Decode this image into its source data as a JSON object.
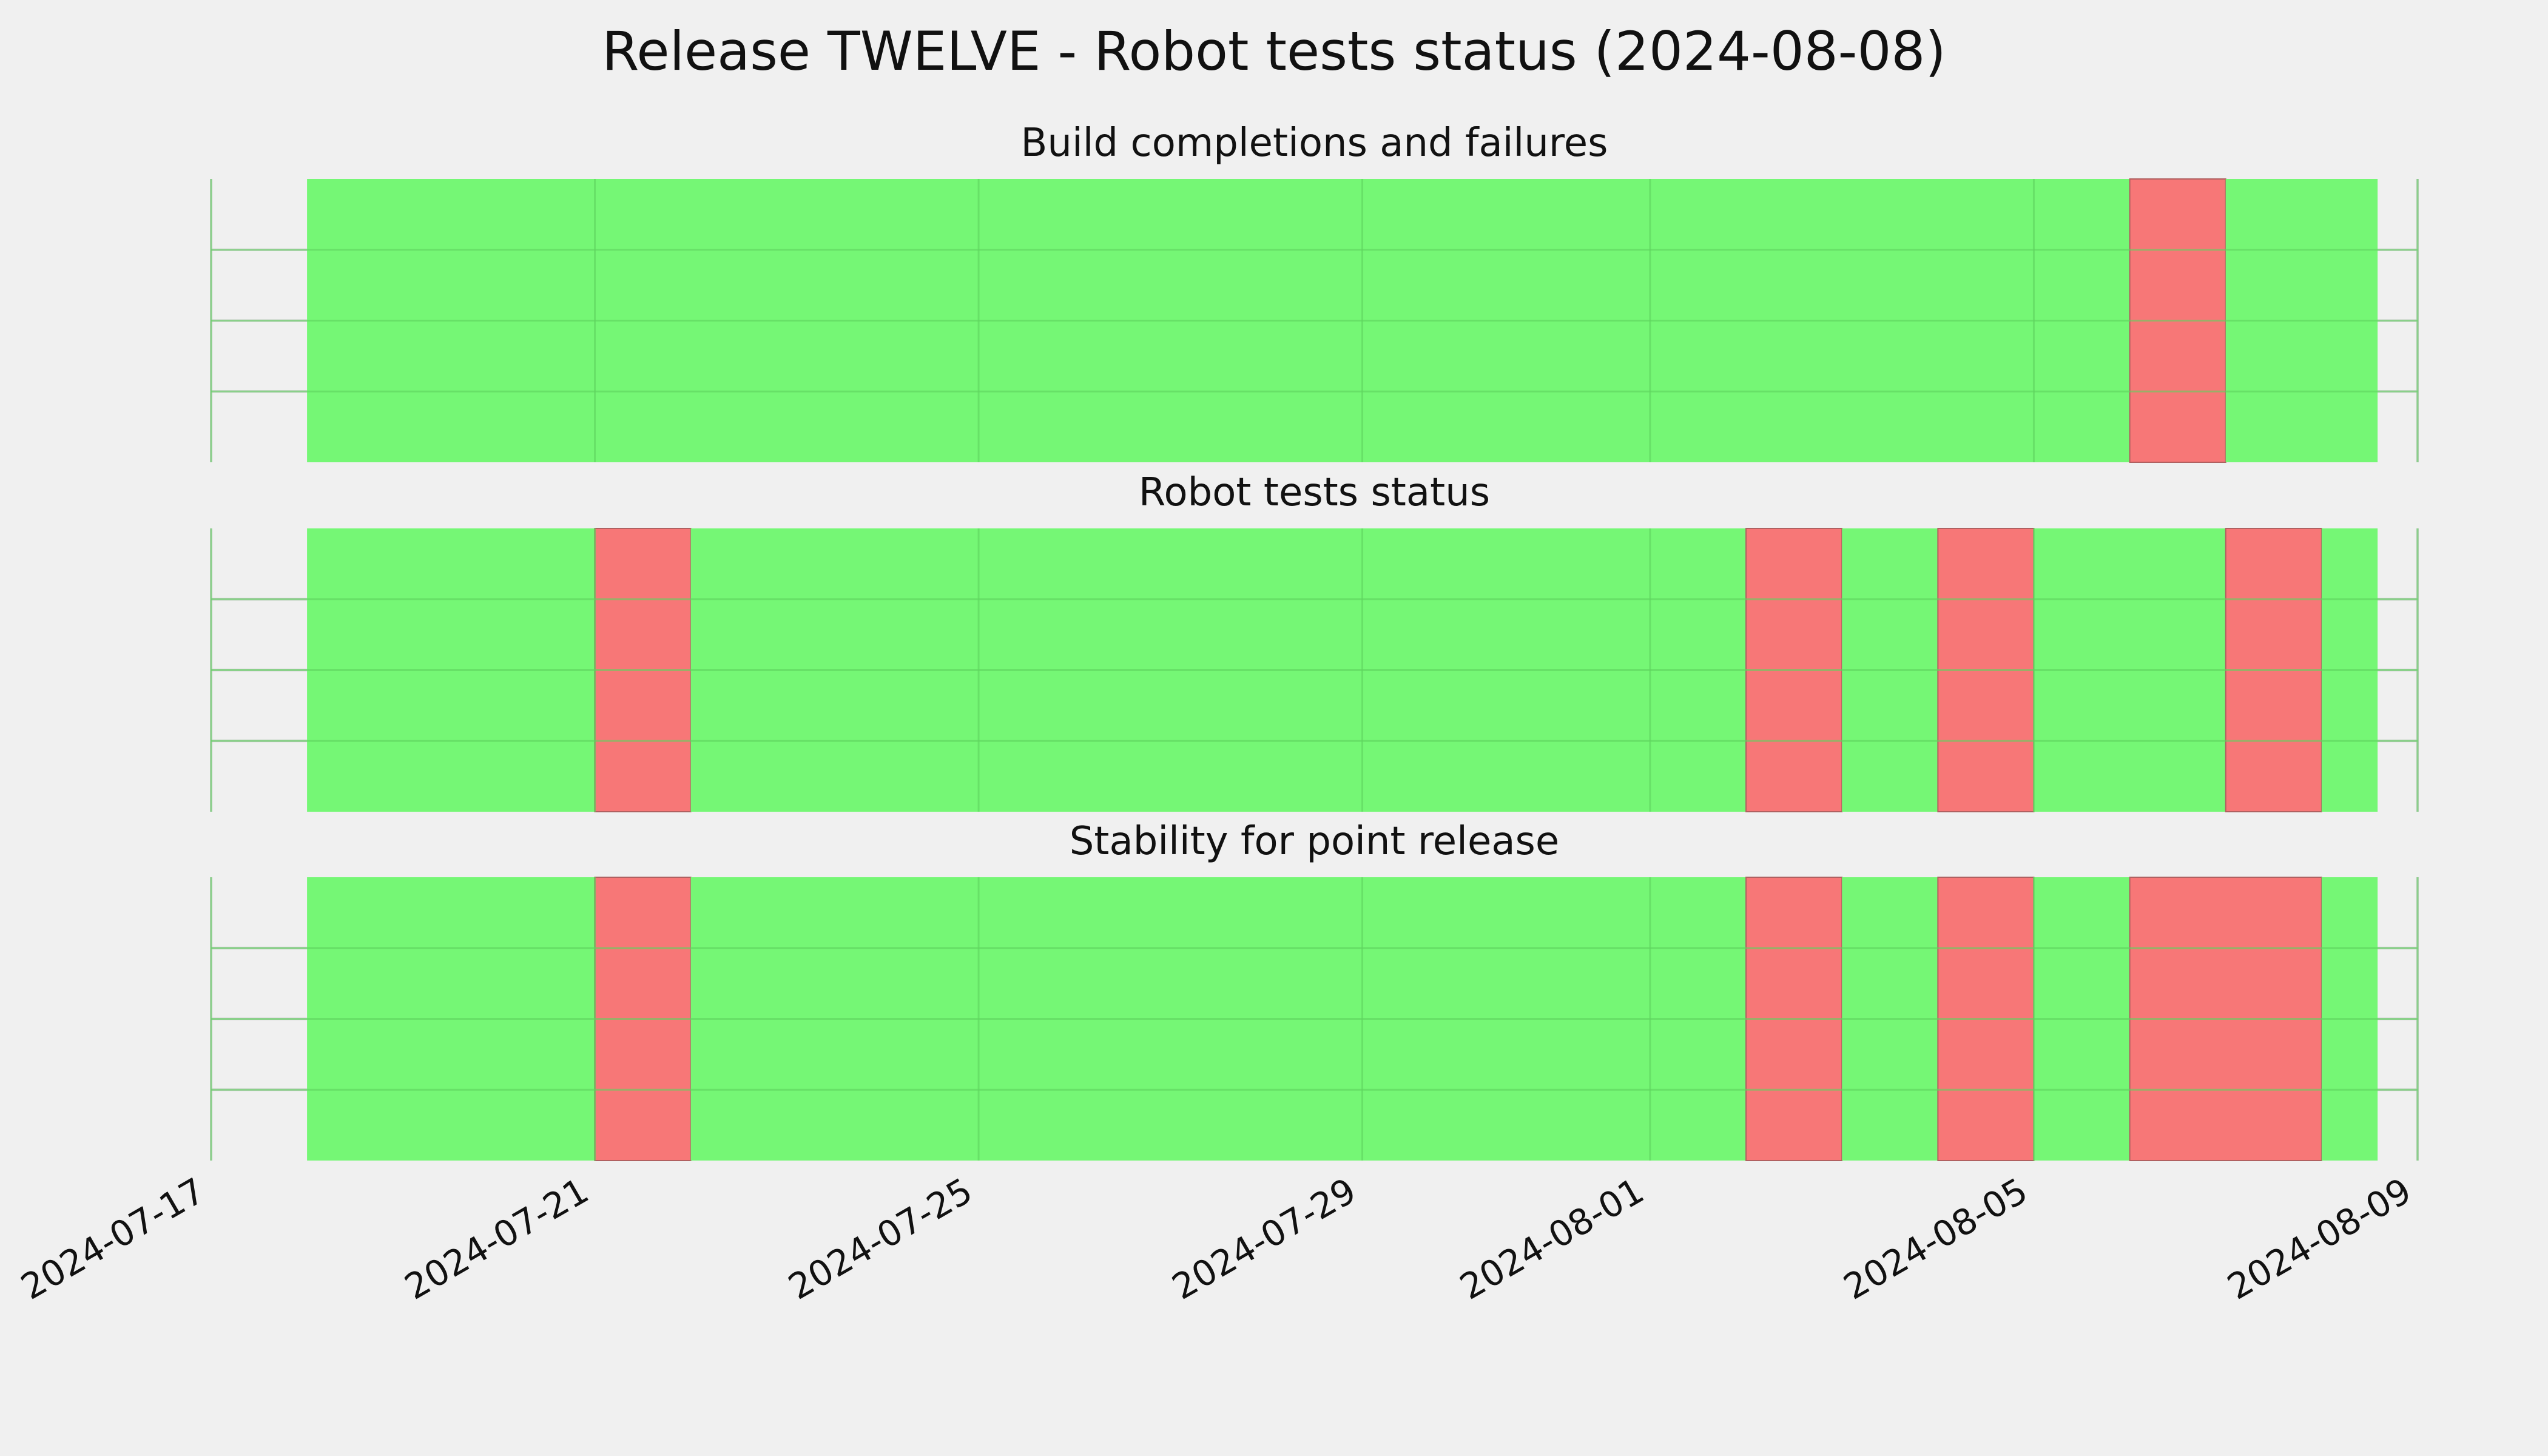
{
  "colors": {
    "background": "#f0f0f0",
    "pass": "#75f775",
    "fail": "#f77777",
    "grid": "#cbcbcb",
    "grid_on_bars": "#5fd45f"
  },
  "chart_data": {
    "type": "timeline",
    "title": "Release TWELVE - Robot tests status (2024-08-08)",
    "x_axis": {
      "type": "date",
      "range": [
        "2024-07-17",
        "2024-08-09"
      ],
      "ticks": [
        "2024-07-17",
        "2024-07-21",
        "2024-07-25",
        "2024-07-29",
        "2024-08-01",
        "2024-08-05",
        "2024-08-09"
      ]
    },
    "grid": true,
    "panels": [
      {
        "title": "Build completions and failures",
        "segments": [
          {
            "start": "2024-07-18",
            "end": "2024-08-06",
            "status": "pass"
          },
          {
            "start": "2024-08-06",
            "end": "2024-08-07",
            "status": "fail"
          },
          {
            "start": "2024-08-07",
            "end": "2024-08-08 14:00",
            "status": "pass"
          }
        ]
      },
      {
        "title": "Robot tests status",
        "segments": [
          {
            "start": "2024-07-18",
            "end": "2024-07-21",
            "status": "pass"
          },
          {
            "start": "2024-07-21",
            "end": "2024-07-22",
            "status": "fail"
          },
          {
            "start": "2024-07-22",
            "end": "2024-08-02",
            "status": "pass"
          },
          {
            "start": "2024-08-02",
            "end": "2024-08-03",
            "status": "fail"
          },
          {
            "start": "2024-08-03",
            "end": "2024-08-04",
            "status": "pass"
          },
          {
            "start": "2024-08-04",
            "end": "2024-08-05",
            "status": "fail"
          },
          {
            "start": "2024-08-05",
            "end": "2024-08-07",
            "status": "pass"
          },
          {
            "start": "2024-08-07",
            "end": "2024-08-08",
            "status": "fail"
          },
          {
            "start": "2024-08-08",
            "end": "2024-08-08 14:00",
            "status": "pass"
          }
        ]
      },
      {
        "title": "Stability for point release",
        "segments": [
          {
            "start": "2024-07-18",
            "end": "2024-07-21",
            "status": "pass"
          },
          {
            "start": "2024-07-21",
            "end": "2024-07-22",
            "status": "fail"
          },
          {
            "start": "2024-07-22",
            "end": "2024-08-02",
            "status": "pass"
          },
          {
            "start": "2024-08-02",
            "end": "2024-08-03",
            "status": "fail"
          },
          {
            "start": "2024-08-03",
            "end": "2024-08-04",
            "status": "pass"
          },
          {
            "start": "2024-08-04",
            "end": "2024-08-05",
            "status": "fail"
          },
          {
            "start": "2024-08-05",
            "end": "2024-08-06",
            "status": "pass"
          },
          {
            "start": "2024-08-06",
            "end": "2024-08-08",
            "status": "fail"
          },
          {
            "start": "2024-08-08",
            "end": "2024-08-08 14:00",
            "status": "pass"
          }
        ]
      }
    ]
  }
}
